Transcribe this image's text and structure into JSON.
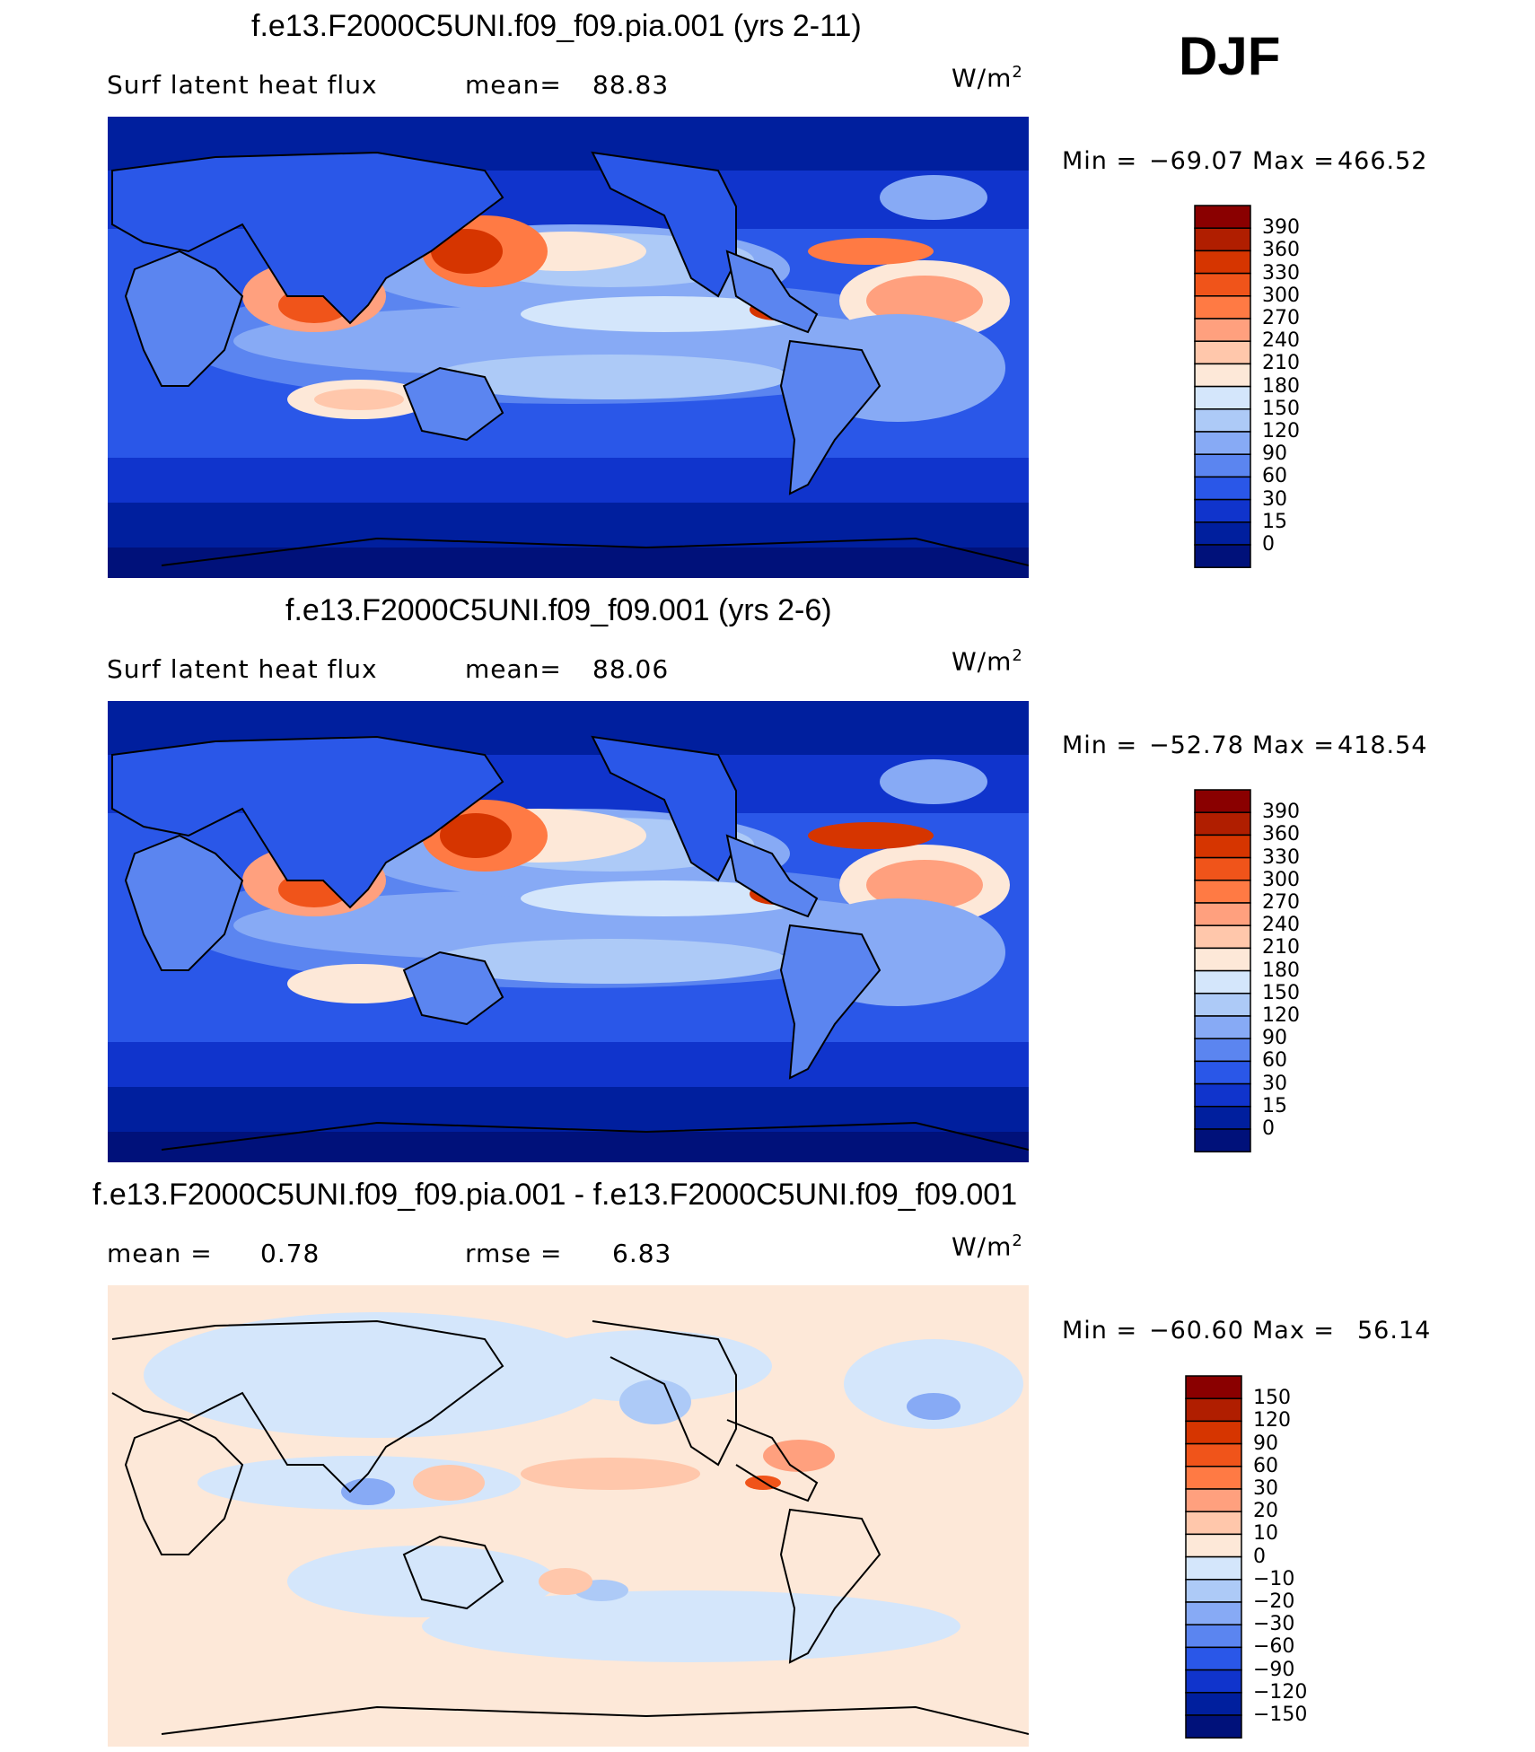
{
  "season": "DJF",
  "panels": [
    {
      "title": "f.e13.F2000C5UNI.f09_f09.pia.001 (yrs 2-11)",
      "left_text": "Surf latent heat flux",
      "stat1_label": "mean=",
      "stat1_value": "88.83",
      "stat2_label": "",
      "stat2_value": "",
      "units_base": "W/m",
      "units_sup": "2",
      "min_label": "Min  =",
      "min_value": "−69.07",
      "max_label": "Max  =",
      "max_value": "466.52",
      "colorbar": {
        "labels": [
          "390",
          "360",
          "330",
          "300",
          "270",
          "240",
          "210",
          "180",
          "150",
          "120",
          "90",
          "60",
          "30",
          "15",
          "0"
        ],
        "colors": [
          "#8a0000",
          "#b01e00",
          "#d63500",
          "#f0541a",
          "#ff7a44",
          "#ffa07e",
          "#ffc7ab",
          "#fde8d8",
          "#d4e6fb",
          "#adcaf7",
          "#87aaf5",
          "#5b85f0",
          "#2a57e8",
          "#1034cc",
          "#001f9e",
          "#00117a"
        ]
      }
    },
    {
      "title": "f.e13.F2000C5UNI.f09_f09.001 (yrs 2-6)",
      "left_text": "Surf latent heat flux",
      "stat1_label": "mean=",
      "stat1_value": "88.06",
      "stat2_label": "",
      "stat2_value": "",
      "units_base": "W/m",
      "units_sup": "2",
      "min_label": "Min  =",
      "min_value": "−52.78",
      "max_label": "Max  =",
      "max_value": "418.54",
      "colorbar": {
        "labels": [
          "390",
          "360",
          "330",
          "300",
          "270",
          "240",
          "210",
          "180",
          "150",
          "120",
          "90",
          "60",
          "30",
          "15",
          "0"
        ],
        "colors": [
          "#8a0000",
          "#b01e00",
          "#d63500",
          "#f0541a",
          "#ff7a44",
          "#ffa07e",
          "#ffc7ab",
          "#fde8d8",
          "#d4e6fb",
          "#adcaf7",
          "#87aaf5",
          "#5b85f0",
          "#2a57e8",
          "#1034cc",
          "#001f9e",
          "#00117a"
        ]
      }
    },
    {
      "title": "f.e13.F2000C5UNI.f09_f09.pia.001 - f.e13.F2000C5UNI.f09_f09.001",
      "left_text": "mean  =",
      "stat1_label": "",
      "stat1_value": "0.78",
      "stat2_label": "rmse  =",
      "stat2_value": "6.83",
      "units_base": "W/m",
      "units_sup": "2",
      "min_label": "Min  =",
      "min_value": "−60.60",
      "max_label": "Max  =",
      "max_value": "56.14",
      "colorbar": {
        "labels": [
          "150",
          "120",
          "90",
          "60",
          "30",
          "20",
          "10",
          "0",
          "−10",
          "−20",
          "−30",
          "−60",
          "−90",
          "−120",
          "−150"
        ],
        "colors": [
          "#8a0000",
          "#b01e00",
          "#d63500",
          "#f0541a",
          "#ff7a44",
          "#ffa07e",
          "#ffc7ab",
          "#fde8d8",
          "#d4e6fb",
          "#adcaf7",
          "#87aaf5",
          "#5b85f0",
          "#2a57e8",
          "#1034cc",
          "#001f9e",
          "#00117a"
        ]
      }
    }
  ]
}
